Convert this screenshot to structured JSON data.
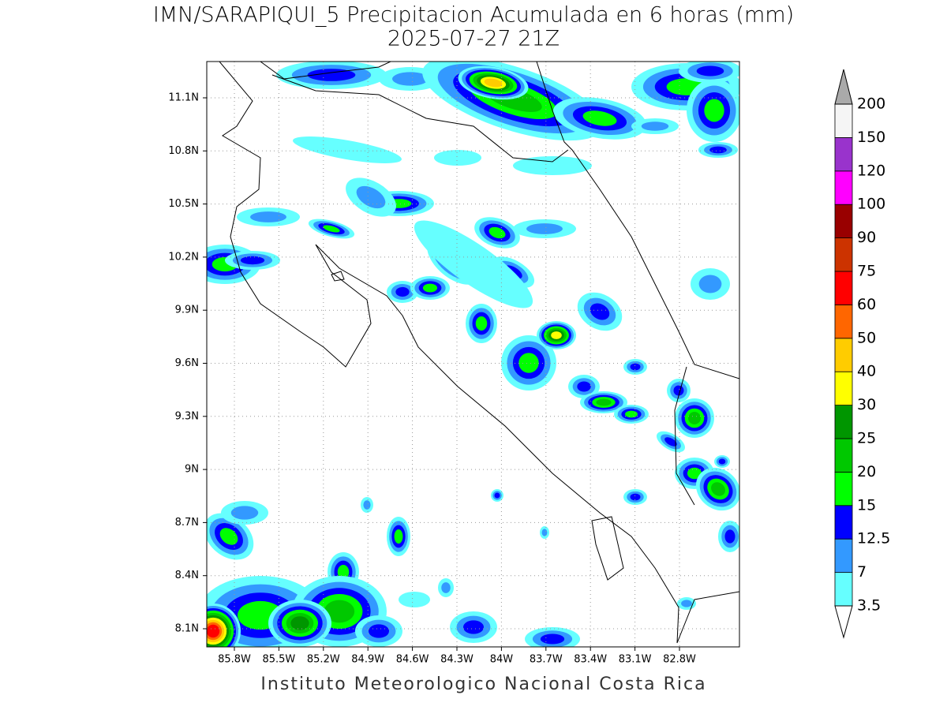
{
  "header": {
    "title_line1": "IMN/SARAPIQUI_5 Precipitacion Acumulada en 6 horas (mm)",
    "title_line2": "2025-07-27 21Z"
  },
  "map": {
    "lon_ticks": [
      "85.8W",
      "85.5W",
      "85.2W",
      "84.9W",
      "84.6W",
      "84.3W",
      "84W",
      "83.7W",
      "83.4W",
      "83.1W",
      "82.8W"
    ],
    "lat_ticks": [
      "11.1N",
      "10.8N",
      "10.5N",
      "10.2N",
      "9.9N",
      "9.6N",
      "9.3N",
      "9N",
      "8.7N",
      "8.4N",
      "8.1N"
    ],
    "grid": true
  },
  "colorbar": {
    "levels": [
      3.5,
      7,
      12.5,
      15,
      20,
      25,
      30,
      40,
      50,
      60,
      75,
      90,
      100,
      120,
      150,
      200
    ],
    "colors": [
      "#66ffff",
      "#3399ff",
      "#0000ff",
      "#00ff00",
      "#00c800",
      "#009600",
      "#ffff00",
      "#ffcc00",
      "#ff6600",
      "#ff0000",
      "#cc3300",
      "#990000",
      "#ff00ff",
      "#9933cc",
      "#f5f5f5"
    ],
    "under_color": "#ffffff",
    "over_color": "#aaaaaa"
  },
  "footer": {
    "text": "Instituto Meteorologico Nacional Costa Rica"
  }
}
